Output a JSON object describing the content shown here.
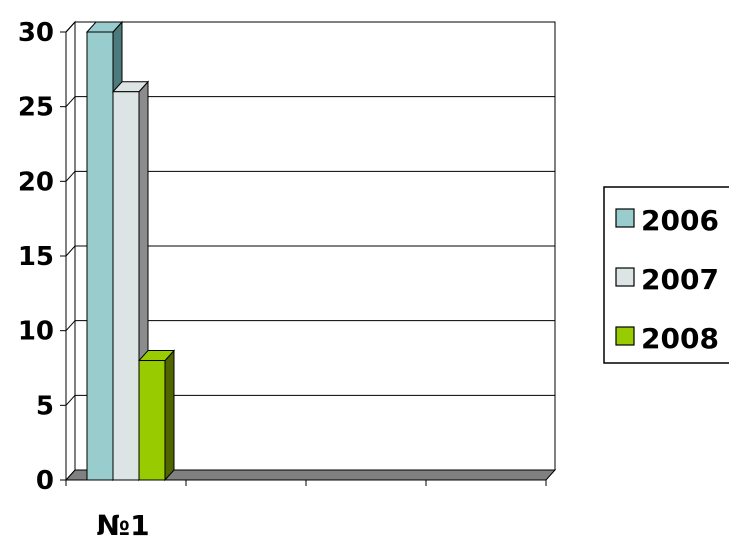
{
  "chart_data": {
    "type": "bar",
    "categories": [
      "№1",
      "",
      "",
      ""
    ],
    "series": [
      {
        "name": "2006",
        "values": [
          30,
          null,
          null,
          null
        ],
        "color": "#99CCCC",
        "side": "#4D7A7A"
      },
      {
        "name": "2007",
        "values": [
          26,
          null,
          null,
          null
        ],
        "color": "#DDE4E4",
        "side": "#8C8C8C"
      },
      {
        "name": "2008",
        "values": [
          8,
          null,
          null,
          null
        ],
        "color": "#99CC00",
        "side": "#4F6600"
      }
    ],
    "ylim": [
      0,
      30
    ],
    "yticks": [
      0,
      5,
      10,
      15,
      20,
      25,
      30
    ],
    "grid": true,
    "legend": "right",
    "style": "3d"
  }
}
